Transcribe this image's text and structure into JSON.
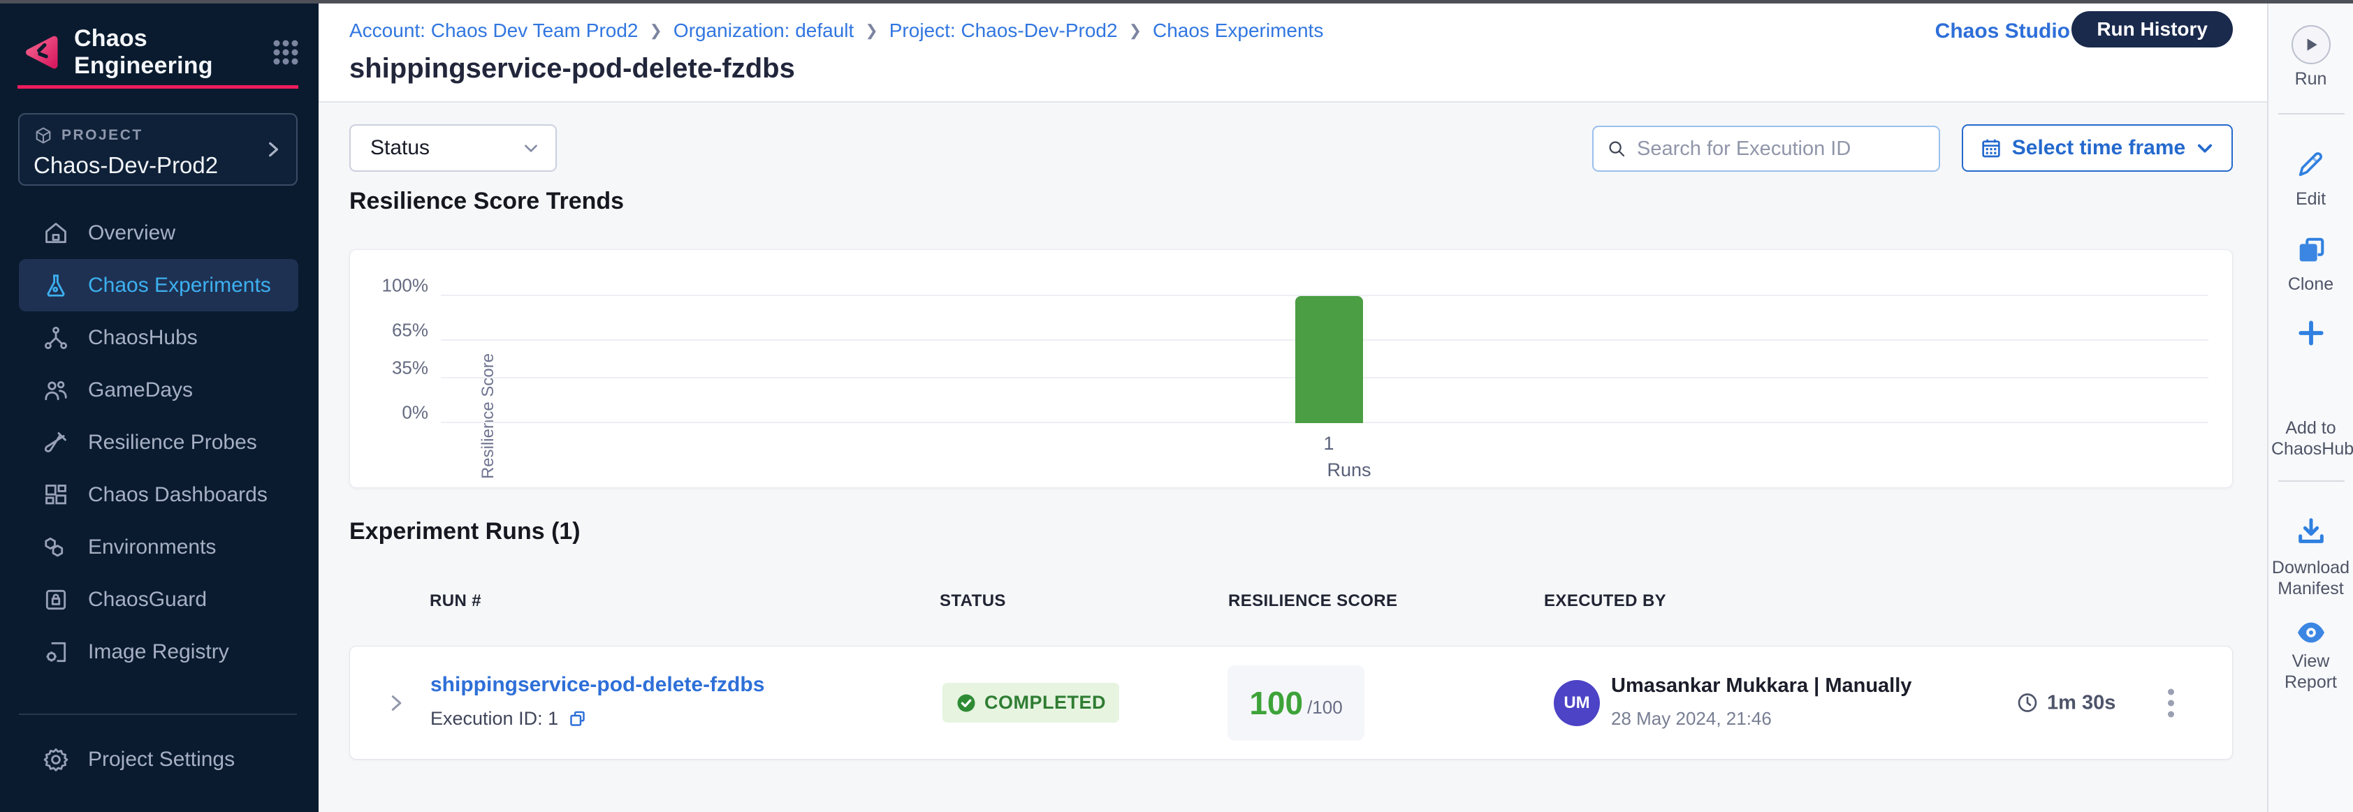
{
  "sidebar": {
    "app_title": "Chaos Engineering",
    "project_label": "PROJECT",
    "project_name": "Chaos-Dev-Prod2",
    "items": [
      {
        "label": "Overview"
      },
      {
        "label": "Chaos Experiments",
        "active": true
      },
      {
        "label": "ChaosHubs"
      },
      {
        "label": "GameDays"
      },
      {
        "label": "Resilience Probes"
      },
      {
        "label": "Chaos Dashboards"
      },
      {
        "label": "Environments"
      },
      {
        "label": "ChaosGuard"
      },
      {
        "label": "Image Registry"
      }
    ],
    "settings_label": "Project Settings"
  },
  "header": {
    "breadcrumbs": [
      "Account: Chaos Dev Team Prod2",
      "Organization: default",
      "Project: Chaos-Dev-Prod2",
      "Chaos Experiments"
    ],
    "title": "shippingservice-pod-delete-fzdbs",
    "chaos_studio_link": "Chaos Studio",
    "run_history_button": "Run History"
  },
  "filters": {
    "status_dropdown_label": "Status",
    "search_placeholder": "Search for Execution ID",
    "time_frame_button": "Select time frame"
  },
  "chart": {
    "section_title": "Resilience Score Trends",
    "chart_data": {
      "type": "bar",
      "categories": [
        "1"
      ],
      "values": [
        100
      ],
      "title": "Resilience Score Trends",
      "xlabel": "Runs",
      "ylabel": "Resilience Score",
      "ylim": [
        0,
        100
      ],
      "ytick_labels": [
        "0%",
        "35%",
        "65%",
        "100%"
      ],
      "grid": "horizontal",
      "bar_color": "#4b9e43"
    }
  },
  "runs": {
    "section_title": "Experiment Runs (1)",
    "columns": [
      "RUN #",
      "STATUS",
      "RESILIENCE SCORE",
      "EXECUTED BY"
    ],
    "rows": [
      {
        "name": "shippingservice-pod-delete-fzdbs",
        "execution_id_label": "Execution ID: 1",
        "status": "COMPLETED",
        "score": "100",
        "score_total": "/100",
        "avatar_initials": "UM",
        "executed_by": "Umasankar Mukkara | Manually",
        "executed_at": "28 May 2024, 21:46",
        "duration": "1m 30s"
      }
    ]
  },
  "action_rail": {
    "run_label": "Run",
    "edit_label": "Edit",
    "clone_label": "Clone",
    "add_to_chaoshub_label": "Add to ChaosHub",
    "download_manifest_label": "Download Manifest",
    "view_report_label": "View Report"
  },
  "colors": {
    "accent_pink": "#ee1c5c",
    "link_blue": "#2e6fd8",
    "active_nav_blue": "#3db0f0",
    "success_green": "#2f7d33",
    "bar_green": "#4b9e43",
    "avatar_indigo": "#4c43c6",
    "sidebar_navy": "#0a1b2f",
    "run_history_navy": "#1a2a4d"
  }
}
